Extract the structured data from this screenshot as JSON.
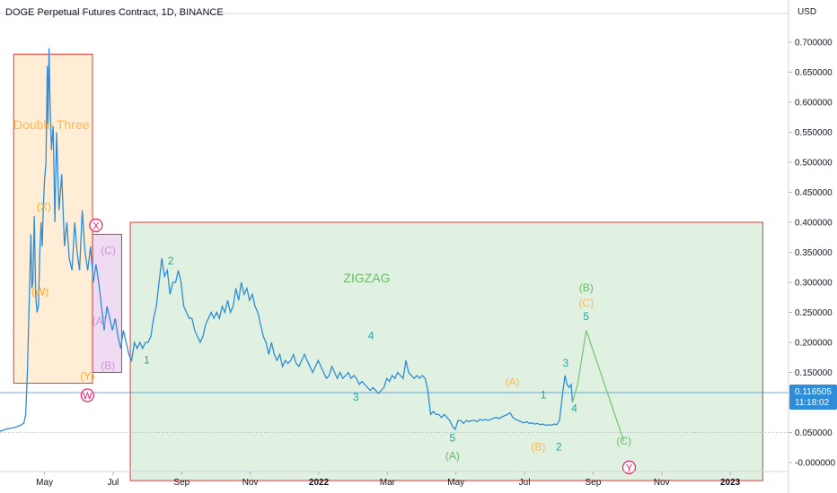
{
  "chart_data": {
    "type": "line",
    "title": "DOGE Perpetual Futures Contract, 1D, BINANCE",
    "currency": "USD",
    "ylim": [
      -0.02,
      0.745
    ],
    "y_ticks": [
      "0.700000",
      "0.650000",
      "0.600000",
      "0.550000",
      "0.500000",
      "0.450000",
      "0.400000",
      "0.350000",
      "0.300000",
      "0.250000",
      "0.200000",
      "0.150000",
      "0.100000",
      "0.050000",
      "-0.000000"
    ],
    "x_ticks": [
      {
        "label": "May",
        "x": 4.0
      },
      {
        "label": "Jul",
        "x": 6.0
      },
      {
        "label": "Sep",
        "x": 8.0
      },
      {
        "label": "Nov",
        "x": 10.0
      },
      {
        "label": "2022",
        "x": 12.0
      },
      {
        "label": "Mar",
        "x": 14.0
      },
      {
        "label": "May",
        "x": 16.0
      },
      {
        "label": "Jul",
        "x": 18.0
      },
      {
        "label": "Sep",
        "x": 20.0
      },
      {
        "label": "Nov",
        "x": 22.0
      },
      {
        "label": "2023",
        "x": 24.0
      }
    ],
    "xlim": [
      2.7,
      25.7
    ],
    "current_price": {
      "value": 0.116505,
      "label": "0.116505",
      "timer": "11:18:02"
    },
    "series": [
      {
        "color": "#2f8cd8",
        "points": [
          [
            2.7,
            0.052
          ],
          [
            2.9,
            0.056
          ],
          [
            3.1,
            0.058
          ],
          [
            3.3,
            0.062
          ],
          [
            3.4,
            0.066
          ],
          [
            3.45,
            0.08
          ],
          [
            3.5,
            0.15
          ],
          [
            3.55,
            0.26
          ],
          [
            3.6,
            0.38
          ],
          [
            3.63,
            0.29
          ],
          [
            3.66,
            0.3
          ],
          [
            3.7,
            0.41
          ],
          [
            3.74,
            0.28
          ],
          [
            3.78,
            0.25
          ],
          [
            3.82,
            0.26
          ],
          [
            3.86,
            0.35
          ],
          [
            3.9,
            0.4
          ],
          [
            3.93,
            0.36
          ],
          [
            3.96,
            0.42
          ],
          [
            4.0,
            0.47
          ],
          [
            4.04,
            0.5
          ],
          [
            4.08,
            0.66
          ],
          [
            4.1,
            0.56
          ],
          [
            4.13,
            0.69
          ],
          [
            4.16,
            0.6
          ],
          [
            4.2,
            0.52
          ],
          [
            4.25,
            0.56
          ],
          [
            4.3,
            0.4
          ],
          [
            4.35,
            0.55
          ],
          [
            4.42,
            0.42
          ],
          [
            4.5,
            0.48
          ],
          [
            4.58,
            0.36
          ],
          [
            4.65,
            0.4
          ],
          [
            4.72,
            0.34
          ],
          [
            4.8,
            0.32
          ],
          [
            4.88,
            0.4
          ],
          [
            4.95,
            0.35
          ],
          [
            5.02,
            0.32
          ],
          [
            5.1,
            0.42
          ],
          [
            5.18,
            0.35
          ],
          [
            5.26,
            0.32
          ],
          [
            5.34,
            0.36
          ],
          [
            5.42,
            0.3
          ],
          [
            5.5,
            0.33
          ],
          [
            5.58,
            0.3
          ],
          [
            5.66,
            0.26
          ],
          [
            5.74,
            0.22
          ],
          [
            5.82,
            0.26
          ],
          [
            5.9,
            0.24
          ],
          [
            5.98,
            0.22
          ],
          [
            6.06,
            0.24
          ],
          [
            6.14,
            0.21
          ],
          [
            6.22,
            0.19
          ],
          [
            6.3,
            0.22
          ],
          [
            6.38,
            0.2
          ],
          [
            6.46,
            0.18
          ],
          [
            6.54,
            0.17
          ],
          [
            6.62,
            0.2
          ],
          [
            6.7,
            0.19
          ],
          [
            6.78,
            0.2
          ],
          [
            6.86,
            0.19
          ],
          [
            6.94,
            0.2
          ],
          [
            7.02,
            0.2
          ],
          [
            7.1,
            0.21
          ],
          [
            7.18,
            0.24
          ],
          [
            7.26,
            0.26
          ],
          [
            7.34,
            0.3
          ],
          [
            7.42,
            0.34
          ],
          [
            7.5,
            0.31
          ],
          [
            7.58,
            0.32
          ],
          [
            7.66,
            0.28
          ],
          [
            7.74,
            0.3
          ],
          [
            7.82,
            0.3
          ],
          [
            7.9,
            0.32
          ],
          [
            7.98,
            0.3
          ],
          [
            8.06,
            0.26
          ],
          [
            8.14,
            0.25
          ],
          [
            8.22,
            0.24
          ],
          [
            8.3,
            0.24
          ],
          [
            8.38,
            0.22
          ],
          [
            8.46,
            0.21
          ],
          [
            8.54,
            0.2
          ],
          [
            8.62,
            0.21
          ],
          [
            8.7,
            0.23
          ],
          [
            8.78,
            0.24
          ],
          [
            8.86,
            0.25
          ],
          [
            8.94,
            0.24
          ],
          [
            9.02,
            0.25
          ],
          [
            9.1,
            0.24
          ],
          [
            9.18,
            0.26
          ],
          [
            9.26,
            0.25
          ],
          [
            9.34,
            0.27
          ],
          [
            9.42,
            0.25
          ],
          [
            9.5,
            0.26
          ],
          [
            9.58,
            0.29
          ],
          [
            9.66,
            0.27
          ],
          [
            9.74,
            0.3
          ],
          [
            9.82,
            0.28
          ],
          [
            9.9,
            0.29
          ],
          [
            9.98,
            0.27
          ],
          [
            10.06,
            0.28
          ],
          [
            10.14,
            0.26
          ],
          [
            10.22,
            0.25
          ],
          [
            10.3,
            0.23
          ],
          [
            10.38,
            0.21
          ],
          [
            10.46,
            0.2
          ],
          [
            10.54,
            0.18
          ],
          [
            10.62,
            0.2
          ],
          [
            10.7,
            0.18
          ],
          [
            10.78,
            0.17
          ],
          [
            10.86,
            0.18
          ],
          [
            10.94,
            0.16
          ],
          [
            11.02,
            0.17
          ],
          [
            11.1,
            0.165
          ],
          [
            11.18,
            0.17
          ],
          [
            11.26,
            0.18
          ],
          [
            11.34,
            0.165
          ],
          [
            11.42,
            0.16
          ],
          [
            11.5,
            0.17
          ],
          [
            11.58,
            0.18
          ],
          [
            11.66,
            0.17
          ],
          [
            11.74,
            0.16
          ],
          [
            11.82,
            0.15
          ],
          [
            11.9,
            0.16
          ],
          [
            11.98,
            0.17
          ],
          [
            12.06,
            0.16
          ],
          [
            12.14,
            0.15
          ],
          [
            12.22,
            0.14
          ],
          [
            12.3,
            0.145
          ],
          [
            12.38,
            0.16
          ],
          [
            12.46,
            0.15
          ],
          [
            12.54,
            0.14
          ],
          [
            12.62,
            0.15
          ],
          [
            12.7,
            0.14
          ],
          [
            12.78,
            0.145
          ],
          [
            12.86,
            0.15
          ],
          [
            12.94,
            0.14
          ],
          [
            13.02,
            0.145
          ],
          [
            13.1,
            0.14
          ],
          [
            13.18,
            0.13
          ],
          [
            13.26,
            0.135
          ],
          [
            13.34,
            0.13
          ],
          [
            13.42,
            0.125
          ],
          [
            13.5,
            0.12
          ],
          [
            13.58,
            0.125
          ],
          [
            13.66,
            0.12
          ],
          [
            13.74,
            0.115
          ],
          [
            13.82,
            0.12
          ],
          [
            13.9,
            0.125
          ],
          [
            13.98,
            0.14
          ],
          [
            14.06,
            0.135
          ],
          [
            14.14,
            0.145
          ],
          [
            14.22,
            0.14
          ],
          [
            14.3,
            0.15
          ],
          [
            14.38,
            0.145
          ],
          [
            14.46,
            0.14
          ],
          [
            14.54,
            0.17
          ],
          [
            14.62,
            0.15
          ],
          [
            14.7,
            0.145
          ],
          [
            14.78,
            0.14
          ],
          [
            14.86,
            0.145
          ],
          [
            14.94,
            0.14
          ],
          [
            15.02,
            0.145
          ],
          [
            15.1,
            0.14
          ],
          [
            15.18,
            0.12
          ],
          [
            15.26,
            0.08
          ],
          [
            15.34,
            0.085
          ],
          [
            15.42,
            0.08
          ],
          [
            15.5,
            0.08
          ],
          [
            15.58,
            0.075
          ],
          [
            15.66,
            0.08
          ],
          [
            15.74,
            0.075
          ],
          [
            15.82,
            0.07
          ],
          [
            15.9,
            0.06
          ],
          [
            15.98,
            0.055
          ],
          [
            16.06,
            0.07
          ],
          [
            16.14,
            0.07
          ],
          [
            16.22,
            0.065
          ],
          [
            16.3,
            0.07
          ],
          [
            16.38,
            0.068
          ],
          [
            16.46,
            0.07
          ],
          [
            16.54,
            0.07
          ],
          [
            16.62,
            0.068
          ],
          [
            16.7,
            0.072
          ],
          [
            16.78,
            0.07
          ],
          [
            16.86,
            0.072
          ],
          [
            16.94,
            0.07
          ],
          [
            17.02,
            0.072
          ],
          [
            17.1,
            0.074
          ],
          [
            17.18,
            0.075
          ],
          [
            17.26,
            0.073
          ],
          [
            17.34,
            0.076
          ],
          [
            17.42,
            0.078
          ],
          [
            17.5,
            0.08
          ],
          [
            17.58,
            0.083
          ],
          [
            17.66,
            0.075
          ],
          [
            17.74,
            0.072
          ],
          [
            17.82,
            0.07
          ],
          [
            17.9,
            0.068
          ],
          [
            17.98,
            0.066
          ],
          [
            18.06,
            0.068
          ],
          [
            18.14,
            0.065
          ],
          [
            18.22,
            0.066
          ],
          [
            18.3,
            0.064
          ],
          [
            18.38,
            0.065
          ],
          [
            18.46,
            0.063
          ],
          [
            18.54,
            0.064
          ],
          [
            18.62,
            0.062
          ],
          [
            18.7,
            0.063
          ],
          [
            18.78,
            0.062
          ],
          [
            18.86,
            0.064
          ],
          [
            18.94,
            0.063
          ],
          [
            19.02,
            0.07
          ],
          [
            19.1,
            0.11
          ],
          [
            19.18,
            0.145
          ],
          [
            19.24,
            0.13
          ],
          [
            19.3,
            0.125
          ],
          [
            19.36,
            0.13
          ],
          [
            19.4,
            0.1
          ]
        ]
      }
    ],
    "projection": {
      "color": "#7fc27f",
      "points": [
        [
          19.4,
          0.1
        ],
        [
          19.55,
          0.13
        ],
        [
          19.8,
          0.22
        ],
        [
          20.9,
          0.035
        ]
      ]
    }
  },
  "annotations": {
    "rects": [
      {
        "name": "double-three-box",
        "x0": 3.1,
        "x1": 5.4,
        "y0": 0.132,
        "y1": 0.68,
        "fill": "#ffe0b2",
        "stroke": "#e53935"
      },
      {
        "name": "x-wave-box",
        "x0": 5.4,
        "x1": 6.25,
        "y0": 0.15,
        "y1": 0.38,
        "fill": "#e1bee7",
        "stroke": "#e53935"
      },
      {
        "name": "zigzag-box",
        "x0": 6.5,
        "x1": 24.95,
        "y0": -0.03,
        "y1": 0.4,
        "fill": "#c8e6c9",
        "stroke": "#e53935"
      }
    ],
    "labels": [
      {
        "text": "Double Three",
        "x": 4.2,
        "y": 0.555,
        "color": "#ffb74d",
        "size": "big"
      },
      {
        "text": "ZIGZAG",
        "x": 13.4,
        "y": 0.3,
        "color": "#66bb6a",
        "size": "big"
      },
      {
        "text": "(X)",
        "x": 3.98,
        "y": 0.42,
        "color": "#ffa726"
      },
      {
        "text": "(W)",
        "x": 3.87,
        "y": 0.278,
        "color": "#ffa726"
      },
      {
        "text": "(Y)",
        "x": 5.25,
        "y": 0.138,
        "color": "#ffa726"
      },
      {
        "text": "(C)",
        "x": 5.86,
        "y": 0.347,
        "color": "#ce93d8"
      },
      {
        "text": "(A)",
        "x": 5.6,
        "y": 0.23,
        "color": "#ce93d8"
      },
      {
        "text": "(B)",
        "x": 5.85,
        "y": 0.155,
        "color": "#ce93d8"
      },
      {
        "text": "2",
        "x": 7.68,
        "y": 0.33,
        "color": "#26a69a"
      },
      {
        "text": "1",
        "x": 6.98,
        "y": 0.165,
        "color": "#26a69a"
      },
      {
        "text": "4",
        "x": 13.52,
        "y": 0.205,
        "color": "#26a69a"
      },
      {
        "text": "3",
        "x": 13.08,
        "y": 0.103,
        "color": "#26a69a"
      },
      {
        "text": "5",
        "x": 15.9,
        "y": 0.035,
        "color": "#26a69a"
      },
      {
        "text": "(A)",
        "x": 15.9,
        "y": 0.005,
        "color": "#66bb6a"
      },
      {
        "text": "(A)",
        "x": 17.65,
        "y": 0.128,
        "color": "#ffb74d"
      },
      {
        "text": "1",
        "x": 18.55,
        "y": 0.107,
        "color": "#26a69a"
      },
      {
        "text": "(B)",
        "x": 18.4,
        "y": 0.02,
        "color": "#ffb74d"
      },
      {
        "text": "2",
        "x": 19.0,
        "y": 0.02,
        "color": "#26a69a"
      },
      {
        "text": "3",
        "x": 19.2,
        "y": 0.16,
        "color": "#26a69a"
      },
      {
        "text": "4",
        "x": 19.45,
        "y": 0.084,
        "color": "#26a69a"
      },
      {
        "text": "5",
        "x": 19.8,
        "y": 0.237,
        "color": "#26a69a"
      },
      {
        "text": "(C)",
        "x": 19.8,
        "y": 0.26,
        "color": "#ffb74d"
      },
      {
        "text": "(B)",
        "x": 19.8,
        "y": 0.285,
        "color": "#66bb6a"
      },
      {
        "text": "(C)",
        "x": 20.9,
        "y": 0.03,
        "color": "#66bb6a"
      }
    ],
    "circled": [
      {
        "text": "X",
        "x": 5.5,
        "y": 0.395,
        "color": "#e91e63"
      },
      {
        "text": "W",
        "x": 5.25,
        "y": 0.112,
        "color": "#e91e63"
      },
      {
        "text": "Y",
        "x": 21.05,
        "y": -0.008,
        "color": "#e91e63"
      }
    ],
    "hlines": [
      {
        "y": 0.116505,
        "color": "#2f8cd8"
      },
      {
        "y": 0.05,
        "color": "#90a4ae"
      }
    ]
  }
}
